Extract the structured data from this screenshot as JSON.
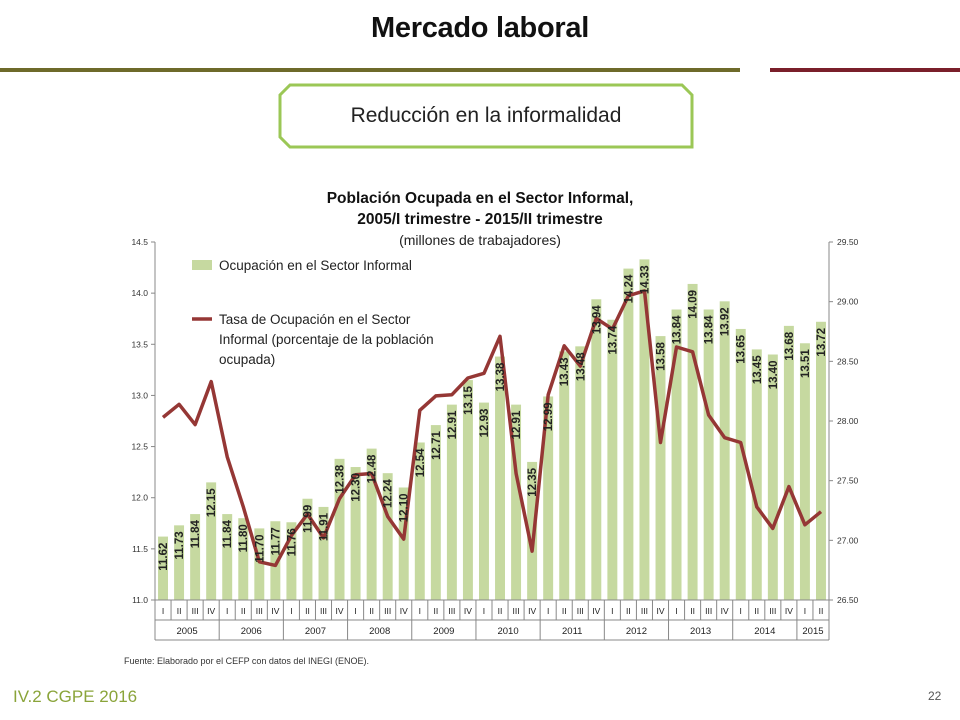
{
  "slide": {
    "title": "Mercado laboral",
    "subtitle": "Reducción en la informalidad",
    "footer": "IV.2 CGPE 2016",
    "page_number": "22",
    "source": "Fuente: Elaborado por el CEFP con datos del INEGI (ENOE).",
    "colors": {
      "left_rule": "#6e6a2a",
      "right_rule": "#7a1f2a",
      "box_border": "#9bc756",
      "footer": "#8aa43a"
    }
  },
  "chart_data": {
    "type": "bar",
    "title_line1": "Población Ocupada en el Sector Informal,",
    "title_line2": "2005/I trimestre - 2015/II trimestre",
    "subtitle": "(millones de trabajadores)",
    "categories": [
      "I",
      "II",
      "III",
      "IV",
      "I",
      "II",
      "III",
      "IV",
      "I",
      "II",
      "III",
      "IV",
      "I",
      "II",
      "III",
      "IV",
      "I",
      "II",
      "III",
      "IV",
      "I",
      "II",
      "III",
      "IV",
      "I",
      "II",
      "III",
      "IV",
      "I",
      "II",
      "III",
      "IV",
      "I",
      "II",
      "III",
      "IV",
      "I",
      "II",
      "III",
      "IV",
      "I",
      "II"
    ],
    "years": [
      {
        "label": "2005",
        "quarters": 4
      },
      {
        "label": "2006",
        "quarters": 4
      },
      {
        "label": "2007",
        "quarters": 4
      },
      {
        "label": "2008",
        "quarters": 4
      },
      {
        "label": "2009",
        "quarters": 4
      },
      {
        "label": "2010",
        "quarters": 4
      },
      {
        "label": "2011",
        "quarters": 4
      },
      {
        "label": "2012",
        "quarters": 4
      },
      {
        "label": "2013",
        "quarters": 4
      },
      {
        "label": "2014",
        "quarters": 4
      },
      {
        "label": "2015",
        "quarters": 2
      }
    ],
    "series": [
      {
        "name": "Ocupación en el Sector Informal",
        "type": "bar",
        "axis": "left",
        "color": "#c6d9a0",
        "values": [
          11.62,
          11.73,
          11.84,
          12.15,
          11.84,
          11.8,
          11.7,
          11.77,
          11.76,
          11.99,
          11.91,
          12.38,
          12.3,
          12.48,
          12.24,
          12.1,
          12.54,
          12.71,
          12.91,
          13.15,
          12.93,
          13.38,
          12.91,
          12.35,
          12.99,
          13.43,
          13.48,
          13.94,
          13.74,
          14.24,
          14.33,
          13.58,
          13.84,
          14.09,
          13.84,
          13.92,
          13.65,
          13.45,
          13.4,
          13.68,
          13.51,
          13.72
        ],
        "labels": [
          "11.62",
          "11.73",
          "11.84",
          "12.15",
          "11.84",
          "11.80",
          "11.70",
          "11.77",
          "11.76",
          "11.99",
          "11.91",
          "12.38",
          "12.30",
          "12.48",
          "12.24",
          "12.10",
          "12.54",
          "12.71",
          "12.91",
          "13.15",
          "12.93",
          "13.38",
          "12.91",
          "12.35",
          "12.99",
          "13.43",
          "13.48",
          "13.94",
          "13.74",
          "14.24",
          "14.33",
          "13.58",
          "13.84",
          "14.09",
          "13.84",
          "13.92",
          "13.65",
          "13.45",
          "13.40",
          "13.68",
          "13.51",
          "13.72"
        ]
      },
      {
        "name_line1": "Tasa de Ocupación en el Sector",
        "name_line2": "Informal (porcentaje de la población",
        "name_line3": "ocupada)",
        "type": "line",
        "axis": "right",
        "color": "#953735",
        "values": [
          28.03,
          28.14,
          27.97,
          28.33,
          27.7,
          27.28,
          26.82,
          26.79,
          27.04,
          27.22,
          27.02,
          27.35,
          27.55,
          27.56,
          27.2,
          27.01,
          28.09,
          28.21,
          28.22,
          28.36,
          28.4,
          28.71,
          27.56,
          26.91,
          28.22,
          28.63,
          28.46,
          28.86,
          28.77,
          29.05,
          29.09,
          27.82,
          28.62,
          28.58,
          28.05,
          27.86,
          27.82,
          27.28,
          27.1,
          27.45,
          27.13,
          27.24
        ]
      }
    ],
    "ylim_left": [
      11.0,
      14.5
    ],
    "yticks_left": [
      "11.0",
      "11.5",
      "12.0",
      "12.5",
      "13.0",
      "13.5",
      "14.0",
      "14.5"
    ],
    "ylim_right": [
      26.5,
      29.5
    ],
    "yticks_right": [
      "26.50",
      "27.00",
      "27.50",
      "28.00",
      "28.50",
      "29.00",
      "29.50"
    ],
    "legend_position": "top-left",
    "grid": false
  }
}
